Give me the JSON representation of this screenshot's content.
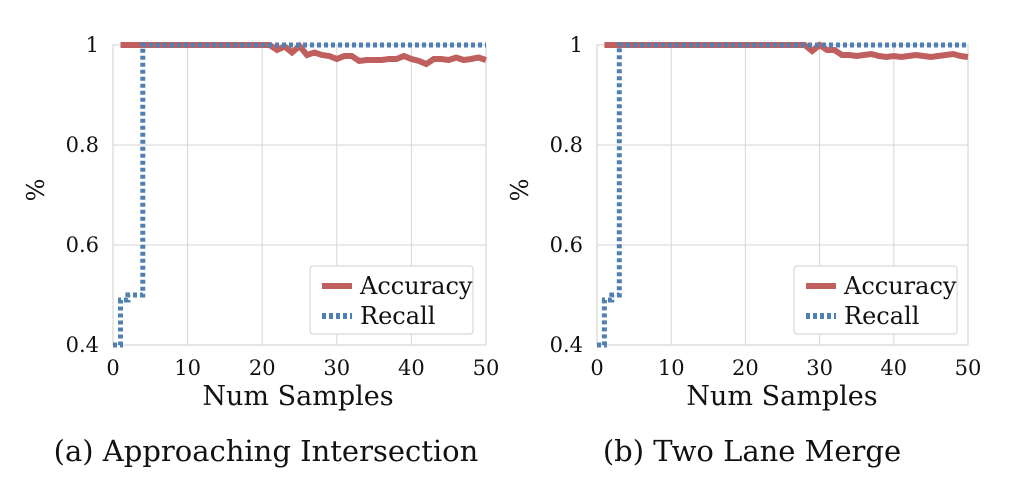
{
  "chart_data": [
    {
      "type": "line",
      "id": "a",
      "caption": "(a) Approaching Intersection",
      "xlabel": "Num Samples",
      "ylabel": "%",
      "xlim": [
        0,
        50
      ],
      "ylim": [
        0.4,
        1.0
      ],
      "xticks": [
        "0",
        "10",
        "20",
        "30",
        "40",
        "50"
      ],
      "yticks": [
        "0.4",
        "0.6",
        "0.8",
        "1"
      ],
      "grid": true,
      "legend_position": "lower-right",
      "series": [
        {
          "name": "Accuracy",
          "color": "#c0605e",
          "style": "solid",
          "x": [
            1,
            2,
            3,
            4,
            5,
            6,
            7,
            8,
            9,
            10,
            11,
            12,
            13,
            14,
            15,
            16,
            17,
            18,
            19,
            20,
            21,
            22,
            23,
            24,
            25,
            26,
            27,
            28,
            29,
            30,
            31,
            32,
            33,
            34,
            35,
            36,
            37,
            38,
            39,
            40,
            41,
            42,
            43,
            44,
            45,
            46,
            47,
            48,
            49,
            50
          ],
          "y": [
            1,
            1,
            1,
            1,
            1,
            1,
            1,
            1,
            1,
            1,
            1,
            1,
            1,
            1,
            1,
            1,
            1,
            1,
            1,
            1,
            1,
            0.99,
            0.997,
            0.985,
            0.998,
            0.98,
            0.985,
            0.98,
            0.978,
            0.972,
            0.978,
            0.978,
            0.968,
            0.97,
            0.97,
            0.97,
            0.972,
            0.972,
            0.978,
            0.972,
            0.968,
            0.962,
            0.972,
            0.972,
            0.97,
            0.975,
            0.97,
            0.972,
            0.975,
            0.97
          ]
        },
        {
          "name": "Recall",
          "color": "#4f7fb3",
          "style": "dotted",
          "x": [
            0,
            1,
            1,
            2,
            2,
            3,
            3,
            4,
            4,
            5,
            50
          ],
          "y": [
            0.4,
            0.4,
            0.49,
            0.49,
            0.5,
            0.5,
            0.5,
            0.5,
            1,
            1,
            1
          ]
        }
      ]
    },
    {
      "type": "line",
      "id": "b",
      "caption": "(b) Two Lane Merge",
      "xlabel": "Num Samples",
      "ylabel": "%",
      "xlim": [
        0,
        50
      ],
      "ylim": [
        0.4,
        1.0
      ],
      "xticks": [
        "0",
        "10",
        "20",
        "30",
        "40",
        "50"
      ],
      "yticks": [
        "0.4",
        "0.6",
        "0.8",
        "1"
      ],
      "grid": true,
      "legend_position": "lower-right",
      "series": [
        {
          "name": "Accuracy",
          "color": "#c0605e",
          "style": "solid",
          "x": [
            1,
            2,
            3,
            4,
            5,
            6,
            7,
            8,
            9,
            10,
            11,
            12,
            13,
            14,
            15,
            16,
            17,
            18,
            19,
            20,
            21,
            22,
            23,
            24,
            25,
            26,
            27,
            28,
            29,
            30,
            31,
            32,
            33,
            34,
            35,
            36,
            37,
            38,
            39,
            40,
            41,
            42,
            43,
            44,
            45,
            46,
            47,
            48,
            49,
            50
          ],
          "y": [
            1,
            1,
            1,
            1,
            1,
            1,
            1,
            1,
            1,
            1,
            1,
            1,
            1,
            1,
            1,
            1,
            1,
            1,
            1,
            1,
            1,
            1,
            1,
            1,
            1,
            1,
            1,
            1,
            0.988,
            1,
            0.99,
            0.99,
            0.98,
            0.98,
            0.978,
            0.98,
            0.982,
            0.978,
            0.976,
            0.978,
            0.976,
            0.978,
            0.98,
            0.978,
            0.976,
            0.978,
            0.98,
            0.982,
            0.978,
            0.976
          ]
        },
        {
          "name": "Recall",
          "color": "#4f7fb3",
          "style": "dotted",
          "x": [
            0,
            0.5,
            1,
            1,
            2,
            2,
            3,
            3,
            50
          ],
          "y": [
            0.4,
            0.4,
            0.4,
            0.49,
            0.49,
            0.5,
            0.5,
            1,
            1
          ]
        }
      ]
    }
  ]
}
